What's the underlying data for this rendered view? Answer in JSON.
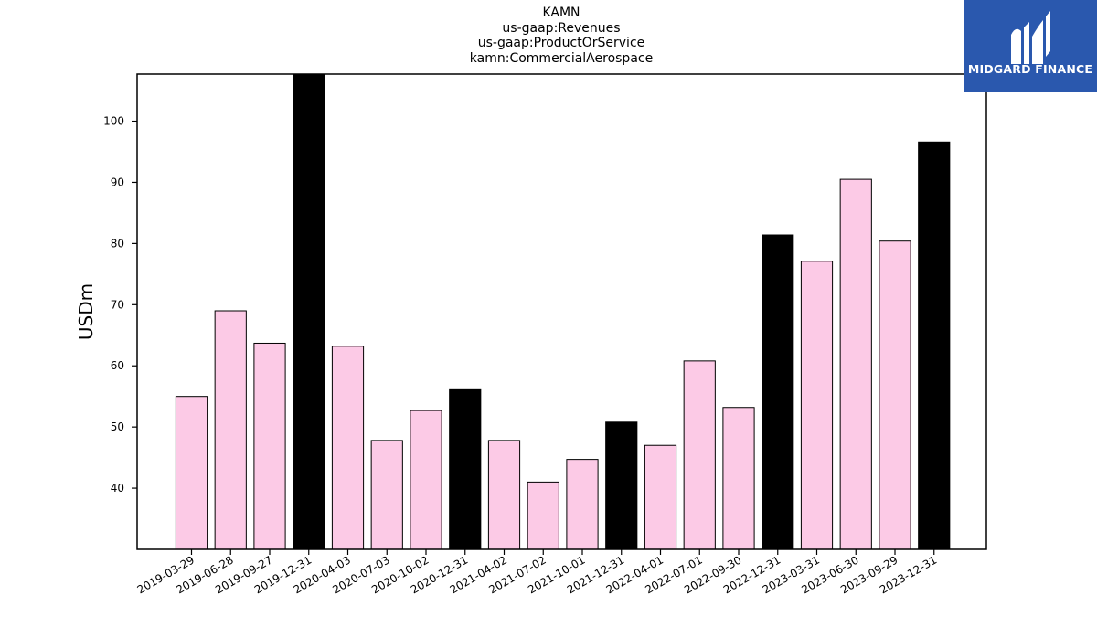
{
  "chart_data": {
    "type": "bar",
    "title_lines": [
      "KAMN",
      "us-gaap:Revenues",
      "us-gaap:ProductOrService",
      "kamn:CommercialAerospace"
    ],
    "xlabel": "",
    "ylabel": "USDm",
    "ylim": [
      30,
      107.7
    ],
    "yticks": [
      40,
      50,
      60,
      70,
      80,
      90,
      100
    ],
    "grid": false,
    "colors": {
      "quarter": "#fccae6",
      "year_end": "#000000",
      "edge": "#000000"
    },
    "categories": [
      "2019-03-29",
      "2019-06-28",
      "2019-09-27",
      "2019-12-31",
      "2020-04-03",
      "2020-07-03",
      "2020-10-02",
      "2020-12-31",
      "2021-04-02",
      "2021-07-02",
      "2021-10-01",
      "2021-12-31",
      "2022-04-01",
      "2022-07-01",
      "2022-09-30",
      "2022-12-31",
      "2023-03-31",
      "2023-06-30",
      "2023-09-29",
      "2023-12-31"
    ],
    "values": [
      55.0,
      69.0,
      63.7,
      107.7,
      63.2,
      47.8,
      52.7,
      56.1,
      47.8,
      41.0,
      44.7,
      50.8,
      47.0,
      60.8,
      53.2,
      81.4,
      77.1,
      90.5,
      80.4,
      96.6
    ],
    "year_end_flags": [
      false,
      false,
      false,
      true,
      false,
      false,
      false,
      true,
      false,
      false,
      false,
      true,
      false,
      false,
      false,
      true,
      false,
      false,
      false,
      true
    ]
  },
  "logo": {
    "text": "MIDGARD FINANCE",
    "icon": "midgard-logo-icon"
  }
}
